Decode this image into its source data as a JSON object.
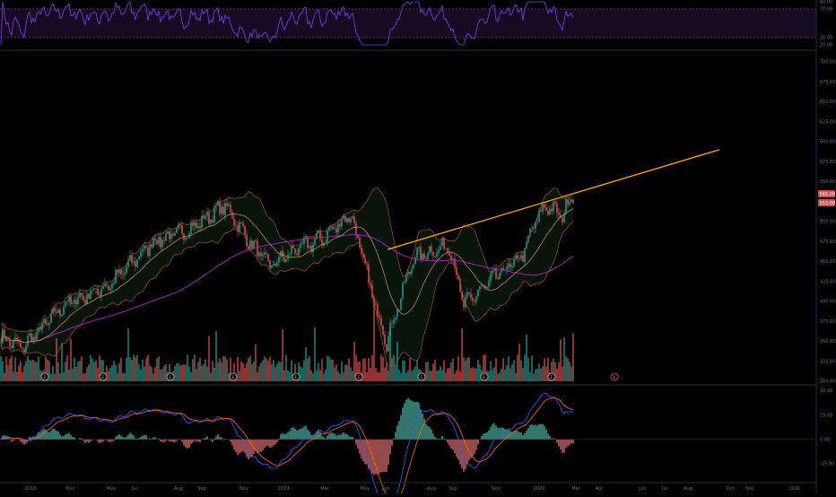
{
  "colors": {
    "background": "#000000",
    "rsi_line": "#7e3ff2",
    "rsi_band": "#2a1340",
    "up": "#26a69a",
    "down": "#ef5350",
    "trendline": "#ffa726",
    "ma_long": "#9c27b0",
    "macd_line": "#2962ff",
    "signal_line": "#ff6d00",
    "bb": "#a0522d",
    "tag": "#d05050"
  },
  "chart_data": [
    {
      "type": "line",
      "panel": "rsi",
      "yaxis_ticks": [
        "80.00",
        "70.00",
        "30.00",
        "20.00"
      ],
      "levels": [
        70,
        30
      ],
      "ylim": [
        20,
        80
      ]
    },
    {
      "type": "candlestick",
      "panel": "price",
      "yaxis_ticks": [
        "700.00",
        "675.00",
        "650.00",
        "625.00",
        "600.00",
        "575.00",
        "550.00",
        "525.00",
        "500.00",
        "475.00",
        "450.00",
        "425.00",
        "400.00",
        "375.00",
        "350.00",
        "325.00",
        "300.00"
      ],
      "ylim": [
        300,
        710
      ],
      "last_price_tags": [
        "565.00",
        "553.00"
      ],
      "overlays": [
        "bollinger-bands",
        "moving-average-long",
        "moving-average-short",
        "trendline",
        "volume"
      ],
      "trendline": {
        "from": [
          "2019-06",
          465
        ],
        "to": [
          "2020-09",
          590
        ]
      },
      "event_markers": [
        "E",
        "E",
        "E",
        "E",
        "E",
        "E",
        "E",
        "E",
        "E",
        "E",
        "E"
      ]
    },
    {
      "type": "bar",
      "panel": "macd",
      "yaxis_ticks": [
        "30.00",
        "15.00",
        "0.00",
        "-15.00"
      ],
      "ylim": [
        -25,
        32
      ],
      "series": [
        {
          "values": "histogram"
        },
        {
          "values": "macd"
        },
        {
          "values": "signal"
        }
      ]
    }
  ],
  "xaxis": {
    "labels": [
      "2018",
      "Mar",
      "May",
      "Jul",
      "Aug",
      "Sep",
      "Nov",
      "2019",
      "Mar",
      "May",
      "Jun",
      "Aug",
      "Sep",
      "Nov",
      "2020",
      "Mar",
      "Apr",
      "Jun",
      "Jul",
      "Aug",
      "Oct",
      "Nov",
      "2021"
    ]
  }
}
